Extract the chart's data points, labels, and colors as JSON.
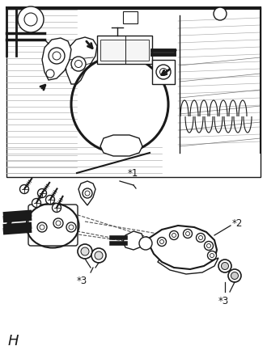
{
  "background_color": "#ffffff",
  "label_H": "H",
  "label_star1": "*1",
  "label_star2": "*2",
  "label_star3_1": "*3",
  "label_star3_2": "*3",
  "fig_width": 3.3,
  "fig_height": 4.49,
  "dpi": 100
}
